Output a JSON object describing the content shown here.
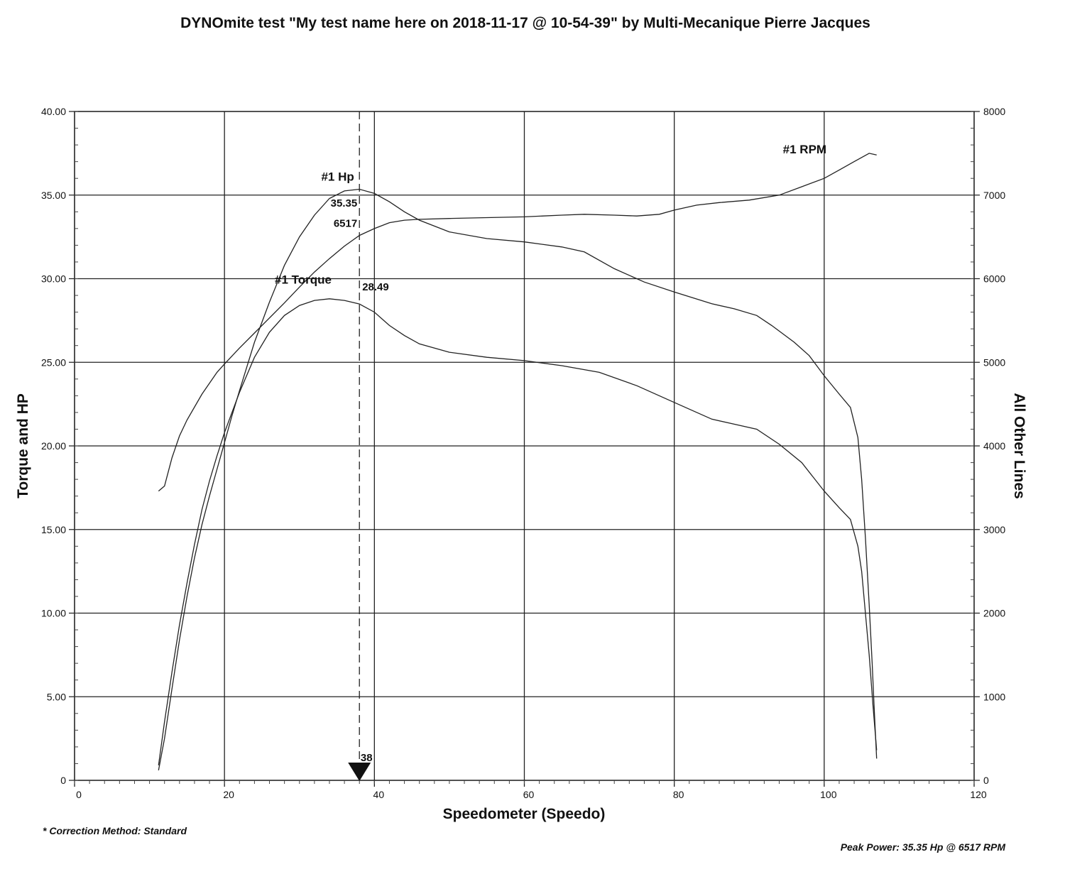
{
  "title": "DYNOmite test \"My test name here on 2018-11-17 @ 10-54-39\" by Multi-Mecanique Pierre Jacques",
  "footnote": "* Correction Method: Standard",
  "peak_note": "Peak Power: 35.35 Hp @ 6517 RPM",
  "chart_data": {
    "type": "line",
    "title": "DYNOmite test \"My test name here on 2018-11-17 @ 10-54-39\" by Multi-Mecanique Pierre Jacques",
    "xlabel": "Speedometer (Speedo)",
    "ylabel": "Torque and HP",
    "y2label": "All Other Lines",
    "xlim": [
      0,
      120
    ],
    "ylim": [
      0,
      40
    ],
    "y2lim": [
      0,
      8000
    ],
    "x_ticks": [
      "0",
      "20",
      "40",
      "60",
      "80",
      "100",
      "120"
    ],
    "y_ticks": [
      "0",
      "5.00",
      "10.00",
      "15.00",
      "20.00",
      "25.00",
      "30.00",
      "35.00",
      "40.00"
    ],
    "y2_ticks": [
      "0",
      "1000",
      "2000",
      "3000",
      "4000",
      "5000",
      "6000",
      "7000",
      "8000"
    ],
    "grid": true,
    "series": [
      {
        "name": "#1 Hp",
        "axis": "left",
        "points": [
          [
            11.2,
            0.6
          ],
          [
            12,
            2.5
          ],
          [
            13,
            5.5
          ],
          [
            14,
            8.4
          ],
          [
            15,
            11.0
          ],
          [
            16,
            13.3
          ],
          [
            17,
            15.3
          ],
          [
            18,
            17.0
          ],
          [
            19,
            18.6
          ],
          [
            20,
            20.2
          ],
          [
            21,
            21.8
          ],
          [
            22,
            23.3
          ],
          [
            24,
            26.2
          ],
          [
            26,
            28.6
          ],
          [
            28,
            30.8
          ],
          [
            30,
            32.5
          ],
          [
            32,
            33.8
          ],
          [
            34,
            34.8
          ],
          [
            36,
            35.25
          ],
          [
            38,
            35.35
          ],
          [
            40,
            35.1
          ],
          [
            42,
            34.6
          ],
          [
            44,
            34.0
          ],
          [
            46,
            33.5
          ],
          [
            50,
            32.8
          ],
          [
            55,
            32.4
          ],
          [
            60,
            32.2
          ],
          [
            65,
            31.9
          ],
          [
            68,
            31.6
          ],
          [
            72,
            30.6
          ],
          [
            76,
            29.8
          ],
          [
            80,
            29.2
          ],
          [
            85,
            28.5
          ],
          [
            88,
            28.2
          ],
          [
            91,
            27.8
          ],
          [
            93,
            27.2
          ],
          [
            96,
            26.2
          ],
          [
            98,
            25.4
          ],
          [
            100,
            24.2
          ],
          [
            102,
            23.1
          ],
          [
            103.5,
            22.3
          ],
          [
            104.5,
            20.5
          ],
          [
            105,
            18.0
          ],
          [
            105.5,
            14.5
          ],
          [
            106,
            10.5
          ],
          [
            106.4,
            7.0
          ],
          [
            106.7,
            4.0
          ],
          [
            107,
            1.3
          ]
        ]
      },
      {
        "name": "#1 Torque",
        "axis": "left",
        "points": [
          [
            11.2,
            0.9
          ],
          [
            12,
            3.5
          ],
          [
            13,
            6.5
          ],
          [
            14,
            9.3
          ],
          [
            15,
            11.8
          ],
          [
            16,
            14.1
          ],
          [
            17,
            16.2
          ],
          [
            18,
            17.9
          ],
          [
            19,
            19.4
          ],
          [
            20,
            20.8
          ],
          [
            22,
            23.2
          ],
          [
            24,
            25.3
          ],
          [
            26,
            26.8
          ],
          [
            28,
            27.8
          ],
          [
            30,
            28.4
          ],
          [
            32,
            28.7
          ],
          [
            34,
            28.8
          ],
          [
            36,
            28.7
          ],
          [
            38,
            28.49
          ],
          [
            40,
            28.0
          ],
          [
            42,
            27.2
          ],
          [
            44,
            26.6
          ],
          [
            46,
            26.1
          ],
          [
            50,
            25.6
          ],
          [
            55,
            25.3
          ],
          [
            60,
            25.1
          ],
          [
            65,
            24.8
          ],
          [
            70,
            24.4
          ],
          [
            75,
            23.6
          ],
          [
            80,
            22.6
          ],
          [
            85,
            21.6
          ],
          [
            88,
            21.3
          ],
          [
            91,
            21.0
          ],
          [
            94,
            20.1
          ],
          [
            97,
            19.0
          ],
          [
            100,
            17.3
          ],
          [
            102,
            16.3
          ],
          [
            103.5,
            15.6
          ],
          [
            104.5,
            14.0
          ],
          [
            105,
            12.5
          ],
          [
            105.5,
            10.0
          ],
          [
            106,
            7.5
          ],
          [
            106.5,
            4.5
          ],
          [
            107,
            1.8
          ]
        ]
      },
      {
        "name": "#1 RPM",
        "axis": "right",
        "points": [
          [
            11.2,
            3460
          ],
          [
            12,
            3520
          ],
          [
            13,
            3860
          ],
          [
            14,
            4120
          ],
          [
            15,
            4310
          ],
          [
            17,
            4620
          ],
          [
            19,
            4880
          ],
          [
            20,
            4980
          ],
          [
            22,
            5170
          ],
          [
            24,
            5350
          ],
          [
            26,
            5530
          ],
          [
            28,
            5710
          ],
          [
            30,
            5900
          ],
          [
            32,
            6080
          ],
          [
            34,
            6240
          ],
          [
            36,
            6390
          ],
          [
            38,
            6517
          ],
          [
            40,
            6600
          ],
          [
            42,
            6670
          ],
          [
            44,
            6700
          ],
          [
            46,
            6710
          ],
          [
            50,
            6720
          ],
          [
            55,
            6730
          ],
          [
            60,
            6740
          ],
          [
            65,
            6760
          ],
          [
            68,
            6770
          ],
          [
            72,
            6760
          ],
          [
            75,
            6750
          ],
          [
            78,
            6770
          ],
          [
            80,
            6820
          ],
          [
            83,
            6880
          ],
          [
            86,
            6910
          ],
          [
            90,
            6940
          ],
          [
            94,
            7000
          ],
          [
            97,
            7100
          ],
          [
            100,
            7200
          ],
          [
            102,
            7300
          ],
          [
            104,
            7400
          ],
          [
            106,
            7500
          ],
          [
            107,
            7480
          ]
        ]
      }
    ],
    "series_labels": [
      {
        "text": "#1 Hp",
        "x": 35.1,
        "y": 35.85
      },
      {
        "text": "#1 Torque",
        "x": 30.5,
        "y": 29.7
      },
      {
        "text": "#1 RPM",
        "x": 97.4,
        "y": 37.5
      }
    ],
    "cursor": {
      "x": 38,
      "x_label": "38",
      "hp_label": "35.35",
      "rpm_label": "6517",
      "torque_label": "28.49"
    }
  }
}
